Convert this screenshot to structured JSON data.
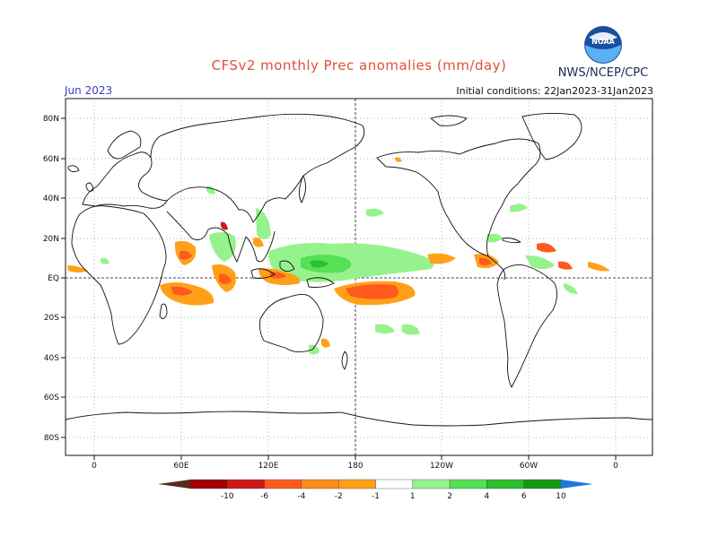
{
  "title": "CFSv2 monthly Prec anomalies (mm/day)",
  "agency": "NWS/NCEP/CPC",
  "logo_text": "NOAA",
  "month_label": "Jun 2023",
  "initial_conditions": "Initial conditions: 22Jan2023-31Jan2023",
  "lat_labels": [
    "80N",
    "60N",
    "40N",
    "20N",
    "EQ",
    "20S",
    "40S",
    "60S",
    "80S"
  ],
  "lon_labels": [
    "0",
    "60E",
    "120E",
    "180",
    "120W",
    "60W",
    "0"
  ],
  "colorbar": {
    "labels": [
      "-10",
      "-6",
      "-4",
      "-2",
      "-1",
      "1",
      "2",
      "4",
      "6",
      "10"
    ],
    "colors": [
      "#5a2a1a",
      "#a00000",
      "#d01818",
      "#ff5a1e",
      "#ff8c1a",
      "#ffa018",
      "#ffffff",
      "#96f28c",
      "#55e055",
      "#2cc02c",
      "#139a13",
      "#1f78dc"
    ]
  },
  "colors": {
    "wet_light": "#96f28c",
    "wet_medium": "#55e055",
    "wet_strong": "#2cc02c",
    "dry_light": "#ffa018",
    "dry_medium": "#ff5a1e",
    "dry_strong": "#d01818",
    "coast": "#111111",
    "grid": "#999999"
  }
}
